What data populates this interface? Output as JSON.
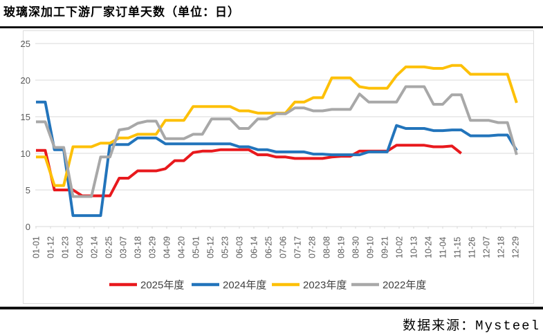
{
  "page": {
    "title": "玻璃深加工下游厂家订单天数（单位：日）",
    "source_note": "数据来源：Mysteel"
  },
  "chart_data": {
    "type": "line",
    "title": "玻璃深加工下游厂家订单天数（单位：日）",
    "unit": "日",
    "xlabel": "",
    "ylabel": "",
    "ylim": [
      0,
      25
    ],
    "y_ticks": [
      0,
      5,
      10,
      15,
      20,
      25
    ],
    "grid": "horizontal",
    "legend_position": "bottom",
    "x_frequency": "weekly",
    "x_tick_labels": [
      "01-01",
      "01-12",
      "01-23",
      "02-03",
      "02-14",
      "02-25",
      "03-07",
      "03-18",
      "03-29",
      "04-09",
      "04-20",
      "05-01",
      "05-12",
      "05-23",
      "06-03",
      "06-14",
      "06-25",
      "07-06",
      "07-17",
      "07-28",
      "08-08",
      "08-19",
      "08-30",
      "09-10",
      "09-21",
      "10-02",
      "10-13",
      "10-24",
      "11-04",
      "11-15",
      "11-26",
      "12-07",
      "12-18",
      "12-29"
    ],
    "series": [
      {
        "name": "2025年度",
        "color": "#e8191d",
        "values": [
          10.4,
          10.4,
          5.0,
          5.0,
          5.0,
          4.2,
          4.2,
          4.2,
          4.2,
          6.6,
          6.6,
          7.6,
          7.6,
          7.6,
          7.9,
          9.0,
          9.0,
          10.1,
          10.3,
          10.3,
          10.5,
          10.5,
          10.5,
          10.5,
          9.8,
          9.8,
          9.5,
          9.5,
          9.3,
          9.3,
          9.3,
          9.3,
          9.5,
          9.6,
          9.6,
          10.3,
          10.3,
          10.3,
          10.3,
          11.1,
          11.1,
          11.1,
          11.1,
          10.9,
          10.9,
          11.0,
          10.0
        ]
      },
      {
        "name": "2024年度",
        "color": "#2274bb",
        "values": [
          17.0,
          17.0,
          10.5,
          10.5,
          1.5,
          1.5,
          1.5,
          1.5,
          11.2,
          11.2,
          11.2,
          12.1,
          12.1,
          12.1,
          11.3,
          11.3,
          11.3,
          11.3,
          11.3,
          11.3,
          11.3,
          11.3,
          10.9,
          10.9,
          10.5,
          10.5,
          10.2,
          10.2,
          10.2,
          10.2,
          9.9,
          9.9,
          9.8,
          9.8,
          9.8,
          9.8,
          10.2,
          10.2,
          10.2,
          13.8,
          13.4,
          13.4,
          13.4,
          13.1,
          13.1,
          13.2,
          13.2,
          12.4,
          12.4,
          12.4,
          12.5,
          12.5,
          10.4
        ]
      },
      {
        "name": "2023年度",
        "color": "#fdc008",
        "values": [
          9.5,
          9.5,
          5.6,
          5.6,
          10.9,
          10.9,
          10.9,
          11.4,
          11.4,
          12.1,
          12.1,
          12.6,
          12.6,
          12.6,
          14.5,
          14.5,
          14.5,
          16.4,
          16.4,
          16.4,
          16.4,
          16.4,
          15.8,
          15.8,
          15.5,
          15.5,
          15.5,
          15.5,
          17.0,
          17.0,
          17.6,
          17.6,
          20.3,
          20.3,
          20.3,
          19.1,
          18.9,
          18.9,
          18.9,
          20.6,
          21.8,
          21.8,
          21.8,
          21.6,
          21.6,
          22.0,
          22.0,
          20.8,
          20.8,
          20.8,
          20.8,
          20.8,
          16.9
        ]
      },
      {
        "name": "2022年度",
        "color": "#a8a8a8",
        "values": [
          14.3,
          14.3,
          10.8,
          10.8,
          4.1,
          4.1,
          4.1,
          9.5,
          9.5,
          13.2,
          13.4,
          14.1,
          14.4,
          14.4,
          12.0,
          12.0,
          12.0,
          12.6,
          12.6,
          14.7,
          14.7,
          14.7,
          13.4,
          13.4,
          14.7,
          14.7,
          15.4,
          15.4,
          16.2,
          16.2,
          15.8,
          15.8,
          16.0,
          16.0,
          16.0,
          18.1,
          17.0,
          17.0,
          17.0,
          17.0,
          19.1,
          19.1,
          19.1,
          16.7,
          16.7,
          18.0,
          18.0,
          14.5,
          14.5,
          14.5,
          14.2,
          14.2,
          9.8
        ]
      }
    ],
    "legend": [
      "2025年度",
      "2024年度",
      "2023年度",
      "2022年度"
    ]
  }
}
